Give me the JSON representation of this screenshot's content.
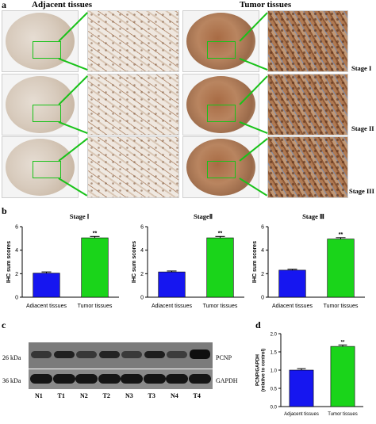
{
  "panel_a": {
    "letter": "a",
    "adjacent_title": "Adjacent tissues",
    "tumor_title": "Tumor tissues",
    "stages": [
      "Stage I",
      "Stage II",
      "Stage III"
    ],
    "colors": {
      "adjacent_stain": "#ece5dc",
      "tumor_stain": "#b0784e",
      "highlight": "#19c219"
    }
  },
  "panel_b": {
    "letter": "b"
  },
  "panel_c": {
    "letter": "c",
    "rows": [
      {
        "mw": "26 kDa",
        "protein": "PCNP"
      },
      {
        "mw": "36 kDa",
        "protein": "GAPDH"
      }
    ],
    "lanes": [
      "N1",
      "T1",
      "N2",
      "T2",
      "N3",
      "T3",
      "N4",
      "T4"
    ]
  },
  "panel_d": {
    "letter": "d"
  },
  "chart_data": [
    {
      "type": "bar",
      "title": "Stage Ⅰ",
      "categories": [
        "Adjacent tissues",
        "Tumor tissues"
      ],
      "values": [
        2.05,
        5.05
      ],
      "errors": [
        0.1,
        0.12
      ],
      "significance": "**",
      "ylabel": "IHC sum scores",
      "ylim": [
        0,
        6
      ],
      "yticks": [
        "0",
        "2",
        "4",
        "6"
      ],
      "colors": [
        "#1616f0",
        "#1ad41a"
      ]
    },
    {
      "type": "bar",
      "title": "StageⅡ",
      "categories": [
        "Adjacent tissues",
        "Tumor tissues"
      ],
      "values": [
        2.15,
        5.05
      ],
      "errors": [
        0.08,
        0.12
      ],
      "significance": "**",
      "ylabel": "IHC sum scores",
      "ylim": [
        0,
        6
      ],
      "yticks": [
        "0",
        "2",
        "4",
        "6"
      ],
      "colors": [
        "#1616f0",
        "#1ad41a"
      ]
    },
    {
      "type": "bar",
      "title": "Stage Ⅲ",
      "categories": [
        "Adjacent tissues",
        "Tumor tissues"
      ],
      "values": [
        2.3,
        4.95
      ],
      "errors": [
        0.08,
        0.12
      ],
      "significance": "**",
      "ylabel": "IHC sum scores",
      "ylim": [
        0,
        6
      ],
      "yticks": [
        "0",
        "2",
        "4",
        "6"
      ],
      "colors": [
        "#1616f0",
        "#1ad41a"
      ]
    },
    {
      "type": "bar",
      "title": "",
      "categories": [
        "Adjacent tissues",
        "Tumor tissues"
      ],
      "values": [
        1.0,
        1.65
      ],
      "errors": [
        0.04,
        0.04
      ],
      "significance": "**",
      "ylabel": "PCNP/GAPDH\n(relative to control)",
      "ylim": [
        0,
        2
      ],
      "yticks": [
        "0.0",
        "0.5",
        "1.0",
        "1.5",
        "2.0"
      ],
      "colors": [
        "#1616f0",
        "#1ad41a"
      ]
    }
  ]
}
